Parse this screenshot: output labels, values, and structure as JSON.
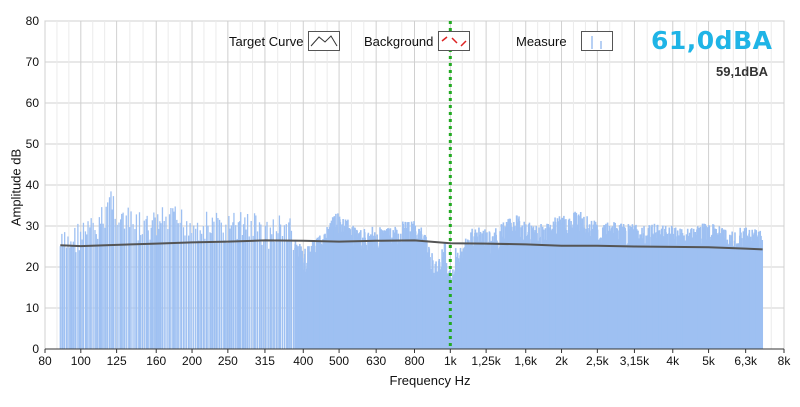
{
  "legend": {
    "target_curve": "Target Curve",
    "background": "Background",
    "measure": "Measure"
  },
  "levels": {
    "main": "61,0dBA",
    "secondary": "59,1dBA"
  },
  "colors": {
    "bars": "#9ec0f2",
    "target_curve": "#555555",
    "marker": "#22aa22",
    "main_level": "#1fb4e6",
    "grid": "#d0d0d0"
  },
  "chart_data": {
    "type": "bar",
    "xlabel": "Frequency Hz",
    "ylabel": "Amplitude dB",
    "x_scale": "log",
    "xlim": [
      80,
      8000
    ],
    "ylim": [
      0,
      80
    ],
    "yticks": [
      "0",
      "10",
      "20",
      "30",
      "40",
      "50",
      "60",
      "70",
      "80"
    ],
    "xtick_labels": [
      "80",
      "100",
      "125",
      "160",
      "200",
      "250",
      "315",
      "400",
      "500",
      "630",
      "800",
      "1k",
      "1,25k",
      "1,6k",
      "2k",
      "2,5k",
      "3,15k",
      "4k",
      "5k",
      "6,3k",
      "8k"
    ],
    "grid": true,
    "marker_frequency": 1000,
    "measure_peaks": [
      {
        "freq": 90,
        "value": 27
      },
      {
        "freq": 100,
        "value": 30
      },
      {
        "freq": 112,
        "value": 31
      },
      {
        "freq": 120,
        "value": 39
      },
      {
        "freq": 130,
        "value": 33
      },
      {
        "freq": 150,
        "value": 31
      },
      {
        "freq": 170,
        "value": 33
      },
      {
        "freq": 190,
        "value": 33
      },
      {
        "freq": 215,
        "value": 32
      },
      {
        "freq": 250,
        "value": 31
      },
      {
        "freq": 280,
        "value": 33
      },
      {
        "freq": 320,
        "value": 30
      },
      {
        "freq": 360,
        "value": 32
      },
      {
        "freq": 400,
        "value": 24
      },
      {
        "freq": 440,
        "value": 28
      },
      {
        "freq": 500,
        "value": 34
      },
      {
        "freq": 560,
        "value": 29
      },
      {
        "freq": 630,
        "value": 30
      },
      {
        "freq": 700,
        "value": 30
      },
      {
        "freq": 780,
        "value": 32
      },
      {
        "freq": 850,
        "value": 29
      },
      {
        "freq": 920,
        "value": 21
      },
      {
        "freq": 970,
        "value": 28
      },
      {
        "freq": 1050,
        "value": 24
      },
      {
        "freq": 1150,
        "value": 30
      },
      {
        "freq": 1300,
        "value": 29
      },
      {
        "freq": 1500,
        "value": 33
      },
      {
        "freq": 1700,
        "value": 30
      },
      {
        "freq": 1900,
        "value": 32
      },
      {
        "freq": 2200,
        "value": 34
      },
      {
        "freq": 2500,
        "value": 31
      },
      {
        "freq": 2900,
        "value": 31
      },
      {
        "freq": 3300,
        "value": 30
      },
      {
        "freq": 3800,
        "value": 31
      },
      {
        "freq": 4300,
        "value": 30
      },
      {
        "freq": 5000,
        "value": 31
      },
      {
        "freq": 5700,
        "value": 29
      },
      {
        "freq": 6400,
        "value": 30
      },
      {
        "freq": 6900,
        "value": 29
      }
    ],
    "target_curve": [
      {
        "freq": 88,
        "value": 25.3
      },
      {
        "freq": 100,
        "value": 25.1
      },
      {
        "freq": 125,
        "value": 25.4
      },
      {
        "freq": 160,
        "value": 25.7
      },
      {
        "freq": 200,
        "value": 26.0
      },
      {
        "freq": 250,
        "value": 26.2
      },
      {
        "freq": 315,
        "value": 26.5
      },
      {
        "freq": 400,
        "value": 26.4
      },
      {
        "freq": 500,
        "value": 26.2
      },
      {
        "freq": 630,
        "value": 26.4
      },
      {
        "freq": 800,
        "value": 26.5
      },
      {
        "freq": 1000,
        "value": 25.8
      },
      {
        "freq": 1250,
        "value": 25.7
      },
      {
        "freq": 1600,
        "value": 25.5
      },
      {
        "freq": 2000,
        "value": 25.2
      },
      {
        "freq": 2500,
        "value": 25.2
      },
      {
        "freq": 3150,
        "value": 25.0
      },
      {
        "freq": 4000,
        "value": 24.9
      },
      {
        "freq": 5000,
        "value": 24.8
      },
      {
        "freq": 6300,
        "value": 24.5
      },
      {
        "freq": 7000,
        "value": 24.3
      }
    ]
  }
}
